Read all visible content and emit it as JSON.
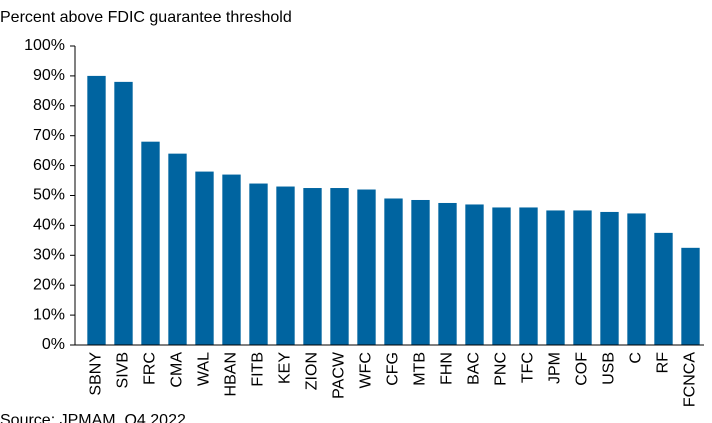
{
  "chart_data": {
    "type": "bar",
    "subtitle": "Percent above FDIC guarantee threshold",
    "source": "Source: JPMAM, Q4 2022",
    "categories": [
      "SBNY",
      "SIVB",
      "FRC",
      "CMA",
      "WAL",
      "HBAN",
      "FITB",
      "KEY",
      "ZION",
      "PACW",
      "WFC",
      "CFG",
      "MTB",
      "FHN",
      "BAC",
      "PNC",
      "TFC",
      "JPM",
      "COF",
      "USB",
      "C",
      "RF",
      "FCNCA"
    ],
    "values": [
      90,
      88,
      68,
      64,
      58,
      57,
      54,
      53,
      52.5,
      52.5,
      52,
      49,
      48.5,
      47.5,
      47,
      46,
      46,
      45,
      45,
      44.5,
      44,
      37.5,
      32.5
    ],
    "color": "#0064a0",
    "ylim": [
      0,
      100
    ],
    "yticks": [
      {
        "value": 0,
        "label": "0%"
      },
      {
        "value": 10,
        "label": "10%"
      },
      {
        "value": 20,
        "label": "20%"
      },
      {
        "value": 30,
        "label": "30%"
      },
      {
        "value": 40,
        "label": "40%"
      },
      {
        "value": 50,
        "label": "50%"
      },
      {
        "value": 60,
        "label": "60%"
      },
      {
        "value": 70,
        "label": "70%"
      },
      {
        "value": 80,
        "label": "80%"
      },
      {
        "value": 90,
        "label": "90%"
      },
      {
        "value": 100,
        "label": "100%"
      }
    ],
    "grid": false
  }
}
